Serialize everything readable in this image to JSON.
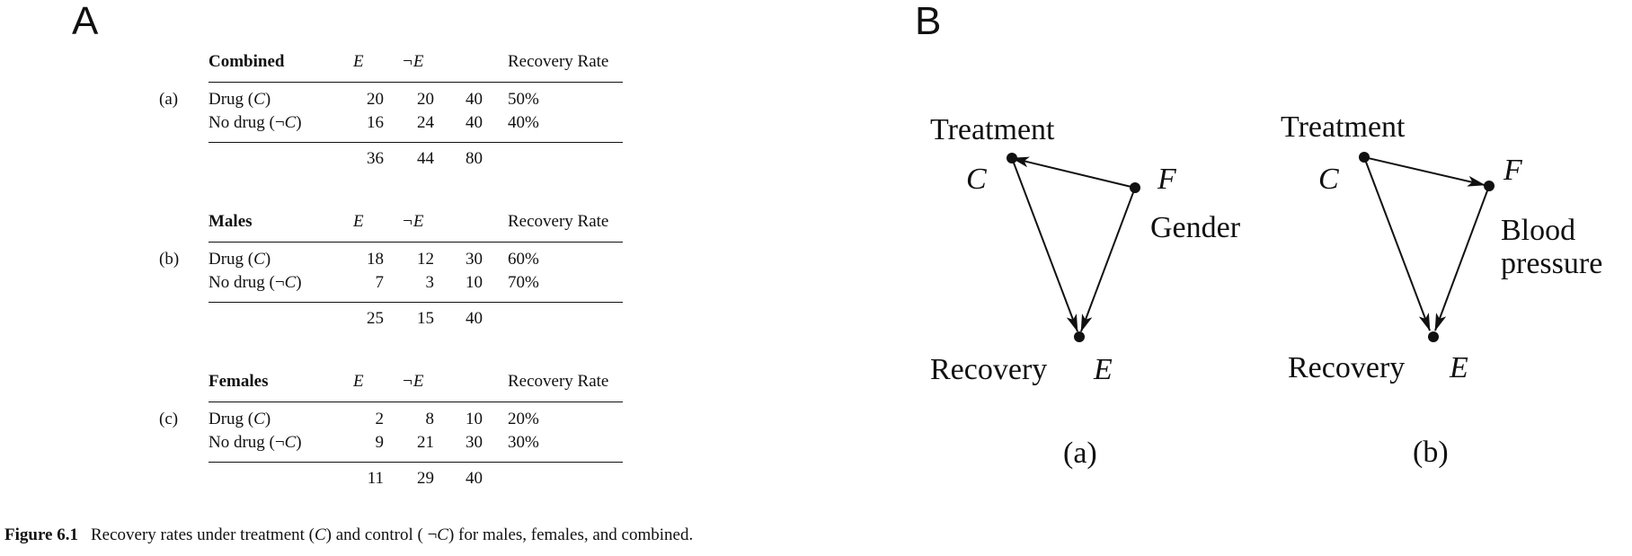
{
  "panel_labels": {
    "a": "A",
    "b": "B"
  },
  "table": {
    "columns": {
      "e": "E",
      "not_e": "¬E",
      "rate": "Recovery Rate"
    },
    "sections": [
      {
        "tag": "(a)",
        "title": "Combined",
        "rows": [
          {
            "label": "Drug (",
            "sym": "C",
            "close": ")",
            "e": "20",
            "not_e": "20",
            "total": "40",
            "rate": "50%"
          },
          {
            "label": "No drug (¬",
            "sym": "C",
            "close": ")",
            "e": "16",
            "not_e": "24",
            "total": "40",
            "rate": "40%"
          }
        ],
        "totals": {
          "e": "36",
          "not_e": "44",
          "total": "80"
        }
      },
      {
        "tag": "(b)",
        "title": "Males",
        "rows": [
          {
            "label": "Drug (",
            "sym": "C",
            "close": ")",
            "e": "18",
            "not_e": "12",
            "total": "30",
            "rate": "60%"
          },
          {
            "label": "No drug (¬",
            "sym": "C",
            "close": ")",
            "e": "7",
            "not_e": "3",
            "total": "10",
            "rate": "70%"
          }
        ],
        "totals": {
          "e": "25",
          "not_e": "15",
          "total": "40"
        }
      },
      {
        "tag": "(c)",
        "title": "Females",
        "rows": [
          {
            "label": "Drug (",
            "sym": "C",
            "close": ")",
            "e": "2",
            "not_e": "8",
            "total": "10",
            "rate": "20%"
          },
          {
            "label": "No drug (¬",
            "sym": "C",
            "close": ")",
            "e": "9",
            "not_e": "21",
            "total": "30",
            "rate": "30%"
          }
        ],
        "totals": {
          "e": "11",
          "not_e": "29",
          "total": "40"
        }
      }
    ]
  },
  "diagrams": [
    {
      "subcaption": "(a)",
      "nodes": {
        "c_name": "Treatment",
        "c_sym": "C",
        "f_name": "Gender",
        "f_sym": "F",
        "e_name": "Recovery",
        "e_sym": "E"
      }
    },
    {
      "subcaption": "(b)",
      "nodes": {
        "c_name": "Treatment",
        "c_sym": "C",
        "f_name_1": "Blood",
        "f_name_2": "pressure",
        "f_sym": "F",
        "e_name": "Recovery",
        "e_sym": "E"
      }
    }
  ],
  "caption": {
    "label": "Figure 6.1",
    "text_1": "Recovery rates under treatment (",
    "sym_1": "C",
    "text_2": ") and control ( ¬",
    "sym_2": "C",
    "text_3": ") for males, females, and combined."
  }
}
